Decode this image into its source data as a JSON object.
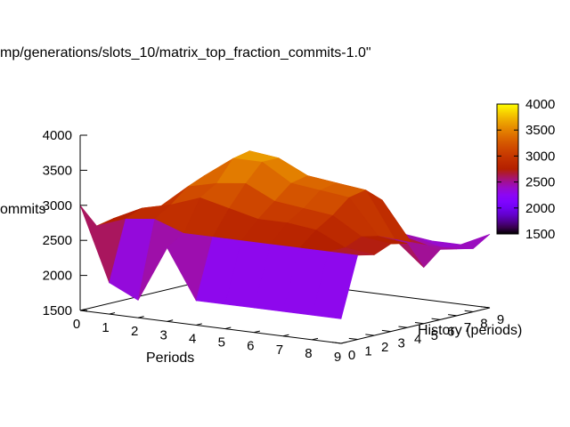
{
  "chart_data": {
    "type": "surface3d",
    "title": "mp/generations/slots_10/matrix_top_fraction_commits-1.0\"",
    "xlabel": "Periods",
    "ylabel": "History (periods)",
    "zlabel": "ommits",
    "x": [
      0,
      1,
      2,
      3,
      4,
      5,
      6,
      7,
      8,
      9
    ],
    "y": [
      0,
      1,
      2,
      3,
      4,
      5,
      6,
      7,
      8,
      9
    ],
    "x_ticks": [
      "0",
      "1",
      "2",
      "3",
      "4",
      "5",
      "6",
      "7",
      "8",
      "9"
    ],
    "y_ticks": [
      "0",
      "1",
      "2",
      "3",
      "4",
      "5",
      "6",
      "7",
      "8",
      "9"
    ],
    "z_ticks": [
      "1500",
      "2000",
      "2500",
      "3000",
      "3500",
      "4000"
    ],
    "zlim": [
      1500,
      4000
    ],
    "colorbar": {
      "ticks": [
        "1500",
        "2000",
        "2500",
        "3000",
        "3500",
        "4000"
      ],
      "range": [
        1500,
        4000
      ]
    },
    "z": [
      [
        3000,
        1950,
        1750,
        2550,
        1850,
        1850,
        1850,
        1850,
        1850,
        1850
      ],
      [
        2650,
        2800,
        2850,
        2700,
        2700,
        2700,
        2700,
        2700,
        2700,
        2700
      ],
      [
        2700,
        2900,
        3000,
        3150,
        3050,
        2950,
        2950,
        2900,
        2700,
        2650
      ],
      [
        2700,
        2850,
        3200,
        3300,
        3350,
        3150,
        3100,
        3050,
        2800,
        2750
      ],
      [
        2700,
        2850,
        3300,
        3600,
        3600,
        3350,
        3300,
        3250,
        2750,
        2700
      ],
      [
        2650,
        2750,
        3200,
        3650,
        3600,
        3400,
        3350,
        3300,
        2650,
        2300
      ],
      [
        2600,
        2700,
        2900,
        3350,
        3300,
        3200,
        3150,
        3100,
        2550,
        2500
      ],
      [
        2500,
        2600,
        2600,
        2700,
        2700,
        2650,
        2600,
        2550,
        2450,
        2450
      ],
      [
        2450,
        2500,
        2550,
        2600,
        2550,
        2500,
        2500,
        2450,
        2350,
        2400
      ],
      [
        2400,
        2450,
        2500,
        2500,
        2450,
        2400,
        2400,
        2350,
        2350,
        2550
      ]
    ]
  }
}
